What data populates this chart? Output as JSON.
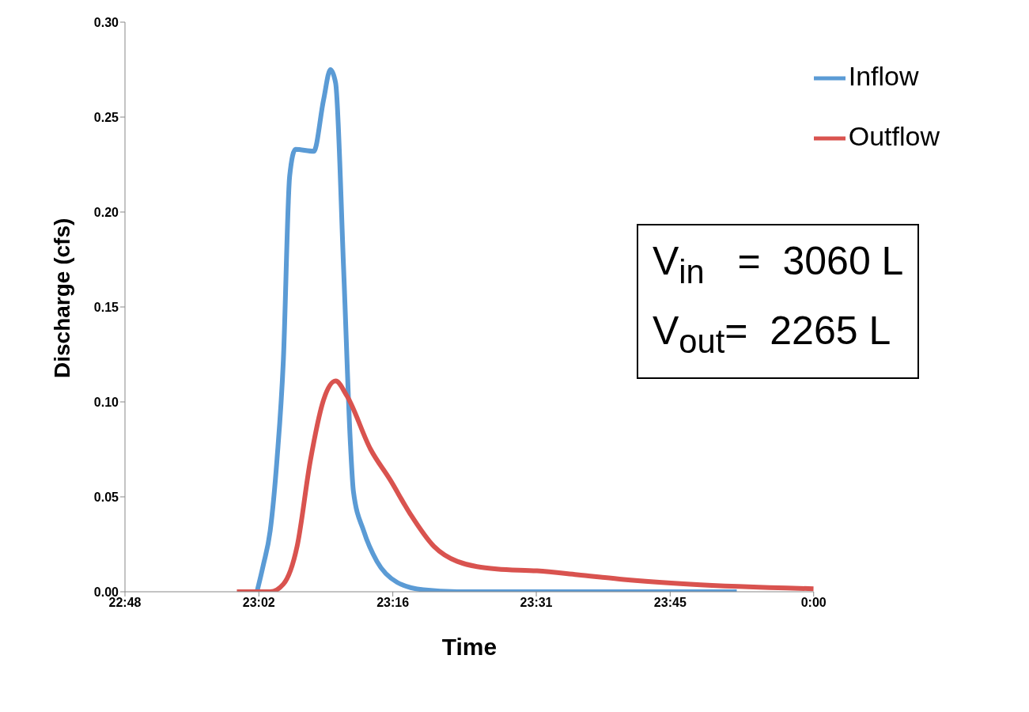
{
  "chart_data": {
    "type": "line",
    "xlabel": "Time",
    "ylabel": "Discharge (cfs)",
    "xlim": [
      22.8,
      24.0
    ],
    "xticks": [
      {
        "value": 22.8,
        "label": "22:48"
      },
      {
        "value": 23.0333,
        "label": "23:02"
      },
      {
        "value": 23.2667,
        "label": "23:16"
      },
      {
        "value": 23.5167,
        "label": "23:31"
      },
      {
        "value": 23.75,
        "label": "23:45"
      },
      {
        "value": 24.0,
        "label": "0:00"
      }
    ],
    "ylim": [
      0,
      0.3
    ],
    "yticks": [
      {
        "value": 0,
        "label": "0.00"
      },
      {
        "value": 0.05,
        "label": "0.05"
      },
      {
        "value": 0.1,
        "label": "0.10"
      },
      {
        "value": 0.15,
        "label": "0.15"
      },
      {
        "value": 0.2,
        "label": "0.20"
      },
      {
        "value": 0.25,
        "label": "0.25"
      },
      {
        "value": 0.3,
        "label": "0.30"
      }
    ],
    "grid": false,
    "legend": "top right",
    "marker": "none",
    "line_style": "solid",
    "series": [
      {
        "name": "Inflow",
        "color": "#5b9bd5",
        "x": [
          23.03,
          23.041,
          23.053,
          23.065,
          23.076,
          23.087,
          23.097,
          23.129,
          23.146,
          23.158,
          23.167,
          23.181,
          23.193,
          23.198,
          23.216,
          23.239,
          23.274,
          23.32,
          23.379,
          23.866
        ],
        "values": [
          0,
          0.014,
          0.032,
          0.07,
          0.122,
          0.219,
          0.233,
          0.232,
          0.259,
          0.275,
          0.268,
          0.17,
          0.077,
          0.053,
          0.032,
          0.016,
          0.005,
          0.001,
          0,
          0
        ]
      },
      {
        "name": "Outflow",
        "color": "#d9534f",
        "x": [
          22.995,
          23.053,
          23.076,
          23.1,
          23.123,
          23.146,
          23.167,
          23.187,
          23.228,
          23.262,
          23.297,
          23.338,
          23.379,
          23.448,
          23.518,
          23.588,
          23.669,
          23.785,
          24.0
        ],
        "values": [
          0,
          0,
          0.004,
          0.024,
          0.069,
          0.101,
          0.111,
          0.103,
          0.075,
          0.059,
          0.041,
          0.024,
          0.016,
          0.012,
          0.011,
          0.009,
          0.0065,
          0.004,
          0.0016
        ]
      }
    ],
    "annotations": [
      "V$_{in}$   =  3060 L",
      "V$_{out}$=  2265 L"
    ]
  }
}
